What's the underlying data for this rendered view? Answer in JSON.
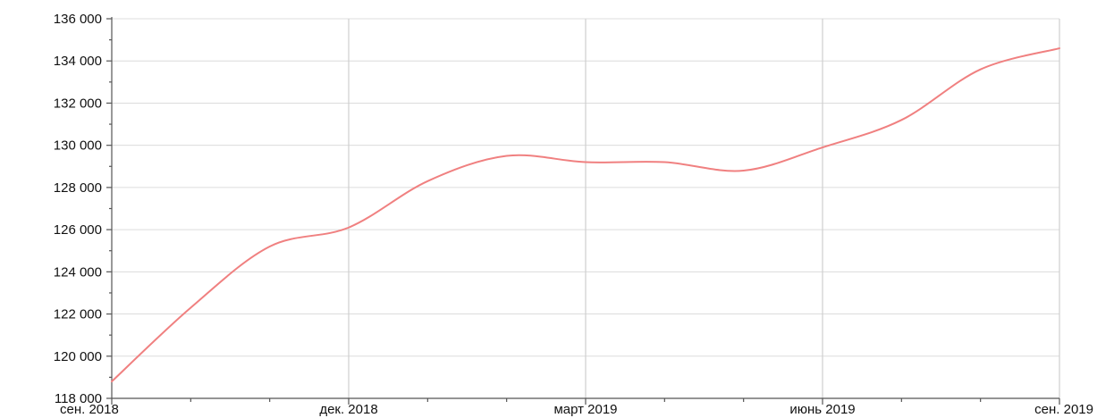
{
  "chart_data": {
    "type": "line",
    "title": "",
    "xlabel": "",
    "ylabel": "",
    "x_tick_labels": [
      "сен. 2018",
      "дек. 2018",
      "март 2019",
      "июнь 2019",
      "сен. 2019"
    ],
    "y_tick_labels": [
      "118 000",
      "120 000",
      "122 000",
      "124 000",
      "126 000",
      "128 000",
      "130 000",
      "132 000",
      "134 000",
      "136 000"
    ],
    "ylim": [
      118000,
      136000
    ],
    "xlim": [
      "2018-09",
      "2019-09"
    ],
    "grid": {
      "horizontal": true,
      "vertical": true
    },
    "series": [
      {
        "color": "#f08080",
        "x": [
          "2018-09",
          "2018-10",
          "2018-11",
          "2018-12",
          "2019-01",
          "2019-02",
          "2019-03",
          "2019-04",
          "2019-05",
          "2019-06",
          "2019-07",
          "2019-08",
          "2019-09"
        ],
        "values": [
          118800,
          122300,
          125200,
          126100,
          128300,
          129500,
          129200,
          129200,
          128800,
          129900,
          131200,
          133600,
          134600
        ]
      }
    ]
  }
}
